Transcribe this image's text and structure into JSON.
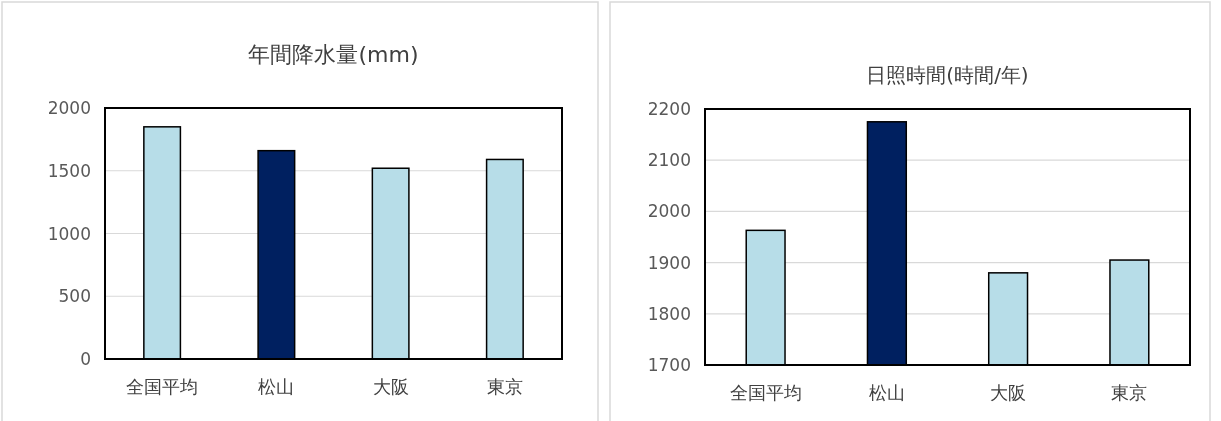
{
  "chart_data": [
    {
      "type": "bar",
      "title": "年間降水量(mm)",
      "categories": [
        "全国平均",
        "松山",
        "大阪",
        "東京"
      ],
      "series": [
        {
          "colors": [
            "#b7dde8",
            "#002060",
            "#b7dde8",
            "#b7dde8"
          ],
          "values": [
            1850,
            1660,
            1520,
            1590
          ]
        }
      ],
      "ylim": [
        0,
        2000
      ],
      "yticks": [
        0,
        500,
        1000,
        1500,
        2000
      ],
      "grid": "y"
    },
    {
      "type": "bar",
      "title": "日照時間(時間/年)",
      "categories": [
        "全国平均",
        "松山",
        "大阪",
        "東京"
      ],
      "series": [
        {
          "colors": [
            "#b7dde8",
            "#002060",
            "#b7dde8",
            "#b7dde8"
          ],
          "values": [
            1963,
            2175,
            1880,
            1905
          ]
        }
      ],
      "ylim": [
        1700,
        2200
      ],
      "yticks": [
        1700,
        1800,
        1900,
        2000,
        2100,
        2200
      ],
      "grid": "y"
    }
  ]
}
